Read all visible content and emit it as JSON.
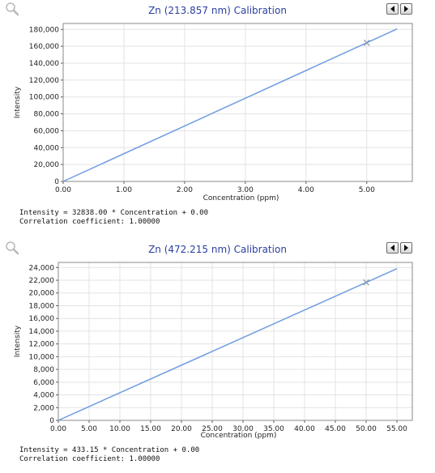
{
  "charts": [
    {
      "header": {
        "title": "Zn (213.857 nm) Calibration"
      },
      "equation": "Intensity = 32838.00 * Concentration + 0.00",
      "correlation": "Correlation coefficient: 1.00000",
      "chart_data": {
        "type": "line",
        "title": "Zn (213.857 nm) Calibration",
        "xlabel": "Concentration (ppm)",
        "ylabel": "Intensity",
        "xlim": [
          0,
          5.75
        ],
        "ylim": [
          0,
          187000
        ],
        "x_ticks": [
          0,
          1,
          2,
          3,
          4,
          5
        ],
        "x_tick_labels": [
          "0.00",
          "1.00",
          "2.00",
          "3.00",
          "4.00",
          "5.00"
        ],
        "y_ticks": [
          0,
          20000,
          40000,
          60000,
          80000,
          100000,
          120000,
          140000,
          160000,
          180000
        ],
        "y_tick_labels": [
          "0",
          "20,000",
          "40,000",
          "60,000",
          "80,000",
          "100,000",
          "120,000",
          "140,000",
          "160,000",
          "180,000"
        ],
        "series": [
          {
            "type": "line",
            "x": [
              0,
              5.5
            ],
            "y": [
              0,
              180609
            ]
          }
        ],
        "markers": [
          {
            "x": 5.0,
            "y": 164190
          }
        ],
        "grid": true,
        "line_color": "#6f9ce0",
        "marker_color": "#8a9ab0"
      }
    },
    {
      "header": {
        "title": "Zn (472.215 nm) Calibration"
      },
      "equation": "Intensity = 433.15 * Concentration + 0.00",
      "correlation": "Correlation coefficient: 1.00000",
      "chart_data": {
        "type": "line",
        "title": "Zn (472.215 nm) Calibration",
        "xlabel": "Concentration (ppm)",
        "ylabel": "Intensity",
        "xlim": [
          0,
          57.5
        ],
        "ylim": [
          0,
          24800
        ],
        "x_ticks": [
          0,
          5,
          10,
          15,
          20,
          25,
          30,
          35,
          40,
          45,
          50,
          55
        ],
        "x_tick_labels": [
          "0.00",
          "5.00",
          "10.00",
          "15.00",
          "20.00",
          "25.00",
          "30.00",
          "35.00",
          "40.00",
          "45.00",
          "50.00",
          "55.00"
        ],
        "y_ticks": [
          0,
          2000,
          4000,
          6000,
          8000,
          10000,
          12000,
          14000,
          16000,
          18000,
          20000,
          22000,
          24000
        ],
        "y_tick_labels": [
          "0",
          "2,000",
          "4,000",
          "6,000",
          "8,000",
          "10,000",
          "12,000",
          "14,000",
          "16,000",
          "18,000",
          "20,000",
          "22,000",
          "24,000"
        ],
        "series": [
          {
            "type": "line",
            "x": [
              0,
              55
            ],
            "y": [
              0,
              23823
            ]
          }
        ],
        "markers": [
          {
            "x": 50,
            "y": 21658
          }
        ],
        "grid": true,
        "line_color": "#6f9ce0",
        "marker_color": "#8a9ab0"
      }
    }
  ]
}
